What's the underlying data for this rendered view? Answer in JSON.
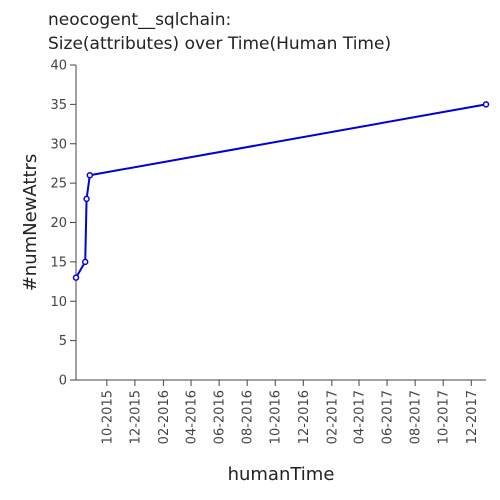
{
  "chart_data": {
    "type": "line",
    "title_line1": "neocogent__sqlchain:",
    "title_line2": "Size(attributes) over Time(Human Time)",
    "xlabel": "humanTime",
    "ylabel": "#numNewAttrs",
    "ylim": [
      0,
      40
    ],
    "yticks": [
      0,
      5,
      10,
      15,
      20,
      25,
      30,
      35,
      40
    ],
    "xlim": [
      "2015-07-26",
      "2018-01-02"
    ],
    "xticks": [
      "10-2015",
      "12-2015",
      "02-2016",
      "04-2016",
      "06-2016",
      "08-2016",
      "10-2016",
      "12-2016",
      "02-2017",
      "04-2017",
      "06-2017",
      "08-2017",
      "10-2017",
      "12-2017"
    ],
    "series_color": "#0000dd",
    "series": [
      {
        "x": [
          "2015-07-26",
          "2015-08-15",
          "2015-08-18",
          "2015-08-25",
          "2018-01-02"
        ],
        "values": [
          13,
          15,
          23,
          26,
          35
        ]
      }
    ]
  }
}
